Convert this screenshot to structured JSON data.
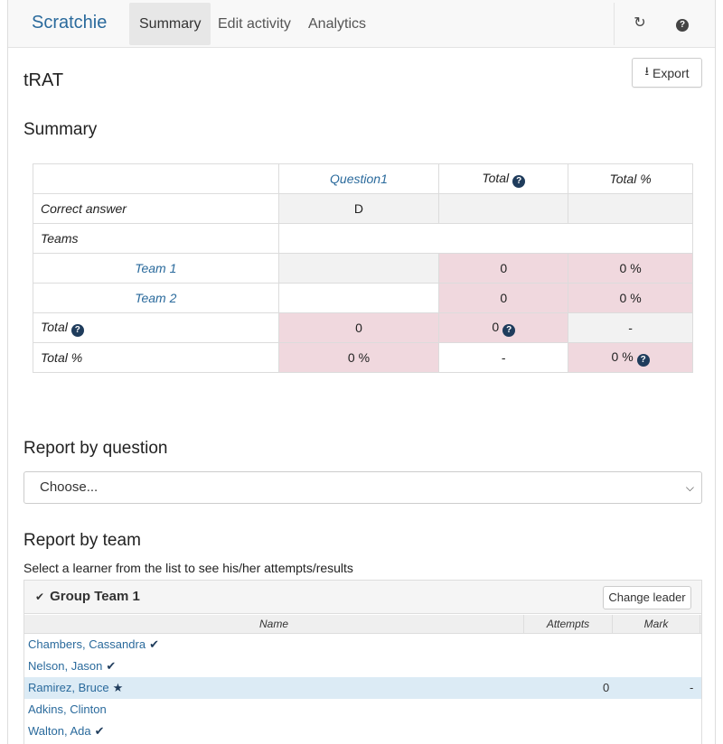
{
  "nav": {
    "brand": "Scratchie",
    "tabs": [
      "Summary",
      "Edit activity",
      "Analytics"
    ],
    "refresh_icon": "refresh-icon",
    "help_icon": "question-circle-icon"
  },
  "page": {
    "title": "tRAT",
    "export_label": "Export"
  },
  "summary": {
    "heading": "Summary",
    "headers": [
      "Question1",
      "Total",
      "Total %"
    ],
    "correct_answer_label": "Correct answer",
    "correct_answer": "D",
    "teams_label": "Teams",
    "teams": [
      {
        "name": "Team 1",
        "total": "0",
        "total_pct": "0 %"
      },
      {
        "name": "Team 2",
        "total": "0",
        "total_pct": "0 %"
      }
    ],
    "total_row": {
      "label": "Total",
      "q1": "0",
      "total": "0",
      "total_pct": "-"
    },
    "total_pct_row": {
      "label": "Total %",
      "q1": "0 %",
      "total": "-",
      "total_pct": "0 %"
    }
  },
  "report_question": {
    "heading": "Report by question",
    "select_value": "Choose..."
  },
  "report_team": {
    "heading": "Report by team",
    "hint": "Select a learner from the list to see his/her attempts/results",
    "group_title": "Group Team 1",
    "change_leader_label": "Change leader",
    "columns": [
      "Name",
      "Attempts",
      "Mark"
    ],
    "learners": [
      {
        "name": "Chambers, Cassandra",
        "marker": "check",
        "attempts": "",
        "mark": ""
      },
      {
        "name": "Nelson, Jason",
        "marker": "check",
        "attempts": "",
        "mark": ""
      },
      {
        "name": "Ramirez, Bruce",
        "marker": "star",
        "attempts": "0",
        "mark": "-"
      },
      {
        "name": "Adkins, Clinton",
        "marker": "",
        "attempts": "",
        "mark": ""
      },
      {
        "name": "Walton, Ada",
        "marker": "check",
        "attempts": "",
        "mark": ""
      }
    ]
  }
}
